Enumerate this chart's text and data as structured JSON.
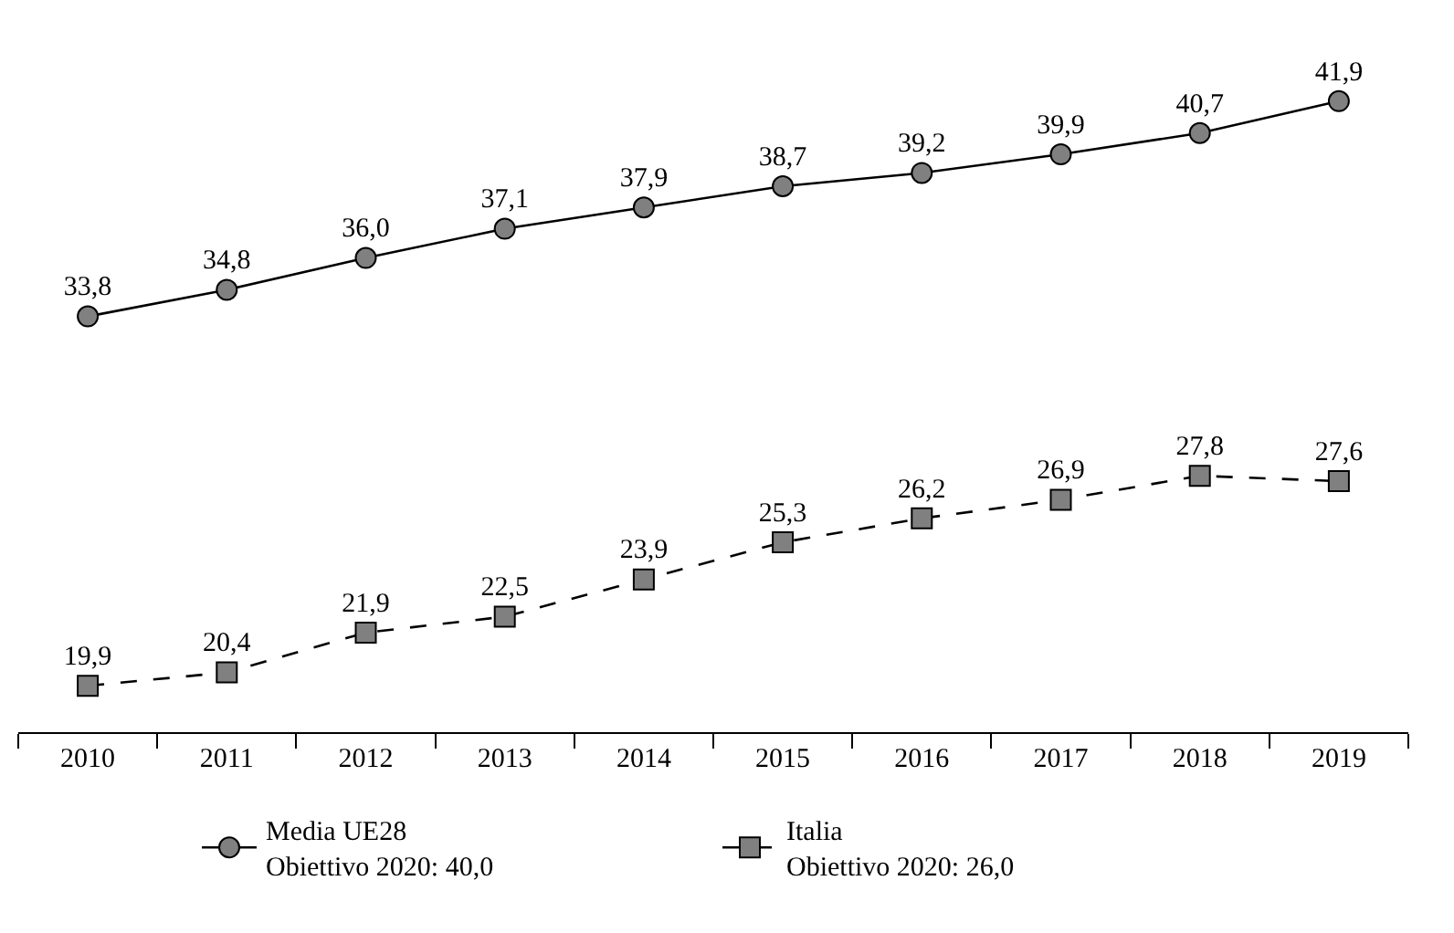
{
  "chart_data": {
    "type": "line",
    "categories": [
      "2010",
      "2011",
      "2012",
      "2013",
      "2014",
      "2015",
      "2016",
      "2017",
      "2018",
      "2019"
    ],
    "series": [
      {
        "name": "Media UE28\nObiettivo 2020: 40,0",
        "color": "#808080",
        "marker": "circle",
        "line_style": "solid",
        "values": [
          33.8,
          34.8,
          36.0,
          37.1,
          37.9,
          38.7,
          39.2,
          39.9,
          40.7,
          41.9
        ],
        "value_labels": [
          "33,8",
          "34,8",
          "36,0",
          "37,1",
          "37,9",
          "38,7",
          "39,2",
          "39,9",
          "40,7",
          "41,9"
        ]
      },
      {
        "name": "Italia\nObiettivo 2020: 26,0",
        "color": "#808080",
        "marker": "square",
        "line_style": "dashed",
        "values": [
          19.9,
          20.4,
          21.9,
          22.5,
          23.9,
          25.3,
          26.2,
          26.9,
          27.8,
          27.6
        ],
        "value_labels": [
          "19,9",
          "20,4",
          "21,9",
          "22,5",
          "23,9",
          "25,3",
          "26,2",
          "26,9",
          "27,8",
          "27,6"
        ]
      }
    ],
    "legend": "bottom",
    "tick_labels": "x"
  }
}
